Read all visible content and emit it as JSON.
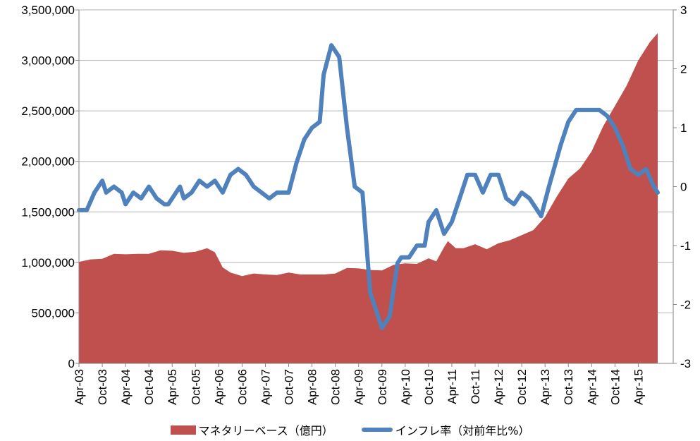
{
  "chart_data": {
    "type": "area+line",
    "title": "",
    "colors": {
      "area": "#C0504D",
      "line": "#4F81BD",
      "grid": "#B3B3B3",
      "axis": "#868686"
    },
    "grid": "horizontal",
    "legend_position": "bottom",
    "x_tick_labels": [
      "Apr-03",
      "Oct-03",
      "Apr-04",
      "Oct-04",
      "Apr-05",
      "Oct-05",
      "Apr-06",
      "Oct-06",
      "Apr-07",
      "Oct-07",
      "Apr-08",
      "Oct-08",
      "Apr-09",
      "Oct-09",
      "Apr-10",
      "Oct-10",
      "Apr-11",
      "Oct-11",
      "Apr-12",
      "Oct-12",
      "Apr-13",
      "Oct-13",
      "Apr-14",
      "Oct-14",
      "Apr-15"
    ],
    "y_left": {
      "min": 0,
      "max": 3500000,
      "step": 500000,
      "tick_labels": [
        "0",
        "500,000",
        "1,000,000",
        "1,500,000",
        "2,000,000",
        "2,500,000",
        "3,000,000",
        "3,500,000"
      ]
    },
    "y_right": {
      "min": -3,
      "max": 3,
      "step": 1,
      "tick_labels": [
        "-3",
        "-2",
        "-1",
        "0",
        "1",
        "2",
        "3"
      ]
    },
    "series": [
      {
        "name": "マネタリーベース（億円）",
        "kind": "area",
        "axis": "left",
        "points": [
          [
            "2003-04",
            1005000
          ],
          [
            "2003-07",
            1030000
          ],
          [
            "2003-10",
            1035000
          ],
          [
            "2004-01",
            1085000
          ],
          [
            "2004-04",
            1080000
          ],
          [
            "2004-07",
            1085000
          ],
          [
            "2004-10",
            1085000
          ],
          [
            "2005-01",
            1120000
          ],
          [
            "2005-04",
            1115000
          ],
          [
            "2005-07",
            1095000
          ],
          [
            "2005-10",
            1105000
          ],
          [
            "2006-01",
            1140000
          ],
          [
            "2006-03",
            1100000
          ],
          [
            "2006-05",
            950000
          ],
          [
            "2006-07",
            900000
          ],
          [
            "2006-10",
            865000
          ],
          [
            "2007-01",
            890000
          ],
          [
            "2007-04",
            880000
          ],
          [
            "2007-07",
            875000
          ],
          [
            "2007-10",
            900000
          ],
          [
            "2008-01",
            880000
          ],
          [
            "2008-04",
            880000
          ],
          [
            "2008-07",
            880000
          ],
          [
            "2008-10",
            890000
          ],
          [
            "2009-01",
            945000
          ],
          [
            "2009-04",
            940000
          ],
          [
            "2009-07",
            925000
          ],
          [
            "2009-10",
            920000
          ],
          [
            "2010-01",
            975000
          ],
          [
            "2010-04",
            990000
          ],
          [
            "2010-07",
            985000
          ],
          [
            "2010-10",
            1040000
          ],
          [
            "2010-12",
            1010000
          ],
          [
            "2011-02",
            1150000
          ],
          [
            "2011-03",
            1210000
          ],
          [
            "2011-05",
            1140000
          ],
          [
            "2011-07",
            1140000
          ],
          [
            "2011-10",
            1180000
          ],
          [
            "2012-01",
            1130000
          ],
          [
            "2012-04",
            1190000
          ],
          [
            "2012-07",
            1220000
          ],
          [
            "2012-10",
            1270000
          ],
          [
            "2013-01",
            1320000
          ],
          [
            "2013-04",
            1450000
          ],
          [
            "2013-07",
            1650000
          ],
          [
            "2013-10",
            1830000
          ],
          [
            "2014-01",
            1930000
          ],
          [
            "2014-04",
            2100000
          ],
          [
            "2014-07",
            2350000
          ],
          [
            "2014-10",
            2550000
          ],
          [
            "2015-01",
            2750000
          ],
          [
            "2015-04",
            3000000
          ],
          [
            "2015-07",
            3180000
          ],
          [
            "2015-09",
            3270000
          ]
        ]
      },
      {
        "name": "インフレ率（対前年比%）",
        "kind": "line",
        "axis": "right",
        "points": [
          [
            "2003-04",
            -0.4
          ],
          [
            "2003-06",
            -0.4
          ],
          [
            "2003-08",
            -0.1
          ],
          [
            "2003-10",
            0.1
          ],
          [
            "2003-11",
            -0.1
          ],
          [
            "2004-01",
            0.0
          ],
          [
            "2004-03",
            -0.1
          ],
          [
            "2004-04",
            -0.3
          ],
          [
            "2004-06",
            -0.1
          ],
          [
            "2004-08",
            -0.2
          ],
          [
            "2004-10",
            0.0
          ],
          [
            "2004-12",
            -0.2
          ],
          [
            "2005-02",
            -0.3
          ],
          [
            "2005-03",
            -0.3
          ],
          [
            "2005-06",
            0.0
          ],
          [
            "2005-07",
            -0.2
          ],
          [
            "2005-09",
            -0.1
          ],
          [
            "2005-11",
            0.1
          ],
          [
            "2006-01",
            0.0
          ],
          [
            "2006-03",
            0.1
          ],
          [
            "2006-05",
            -0.1
          ],
          [
            "2006-07",
            0.2
          ],
          [
            "2006-09",
            0.3
          ],
          [
            "2006-11",
            0.2
          ],
          [
            "2007-01",
            0.0
          ],
          [
            "2007-03",
            -0.1
          ],
          [
            "2007-05",
            -0.2
          ],
          [
            "2007-07",
            -0.1
          ],
          [
            "2007-10",
            -0.1
          ],
          [
            "2007-12",
            0.4
          ],
          [
            "2008-02",
            0.8
          ],
          [
            "2008-04",
            1.0
          ],
          [
            "2008-06",
            1.1
          ],
          [
            "2008-07",
            1.9
          ],
          [
            "2008-09",
            2.4
          ],
          [
            "2008-11",
            2.2
          ],
          [
            "2009-01",
            1.0
          ],
          [
            "2009-03",
            0.0
          ],
          [
            "2009-05",
            -0.1
          ],
          [
            "2009-07",
            -1.8
          ],
          [
            "2009-09",
            -2.2
          ],
          [
            "2009-10",
            -2.4
          ],
          [
            "2009-12",
            -2.2
          ],
          [
            "2010-02",
            -1.3
          ],
          [
            "2010-03",
            -1.2
          ],
          [
            "2010-05",
            -1.2
          ],
          [
            "2010-07",
            -1.0
          ],
          [
            "2010-09",
            -1.0
          ],
          [
            "2010-10",
            -0.6
          ],
          [
            "2010-12",
            -0.4
          ],
          [
            "2011-02",
            -0.8
          ],
          [
            "2011-04",
            -0.6
          ],
          [
            "2011-06",
            -0.2
          ],
          [
            "2011-08",
            0.2
          ],
          [
            "2011-10",
            0.2
          ],
          [
            "2011-12",
            -0.1
          ],
          [
            "2012-02",
            0.2
          ],
          [
            "2012-04",
            0.2
          ],
          [
            "2012-06",
            -0.2
          ],
          [
            "2012-08",
            -0.3
          ],
          [
            "2012-10",
            -0.1
          ],
          [
            "2012-12",
            -0.2
          ],
          [
            "2013-03",
            -0.5
          ],
          [
            "2013-05",
            0.0
          ],
          [
            "2013-08",
            0.7
          ],
          [
            "2013-10",
            1.1
          ],
          [
            "2013-12",
            1.3
          ],
          [
            "2014-02",
            1.3
          ],
          [
            "2014-04",
            1.3
          ],
          [
            "2014-06",
            1.3
          ],
          [
            "2014-08",
            1.2
          ],
          [
            "2014-10",
            1.0
          ],
          [
            "2014-12",
            0.7
          ],
          [
            "2015-02",
            0.3
          ],
          [
            "2015-04",
            0.2
          ],
          [
            "2015-06",
            0.3
          ],
          [
            "2015-08",
            0.0
          ],
          [
            "2015-09",
            -0.1
          ]
        ]
      }
    ]
  }
}
